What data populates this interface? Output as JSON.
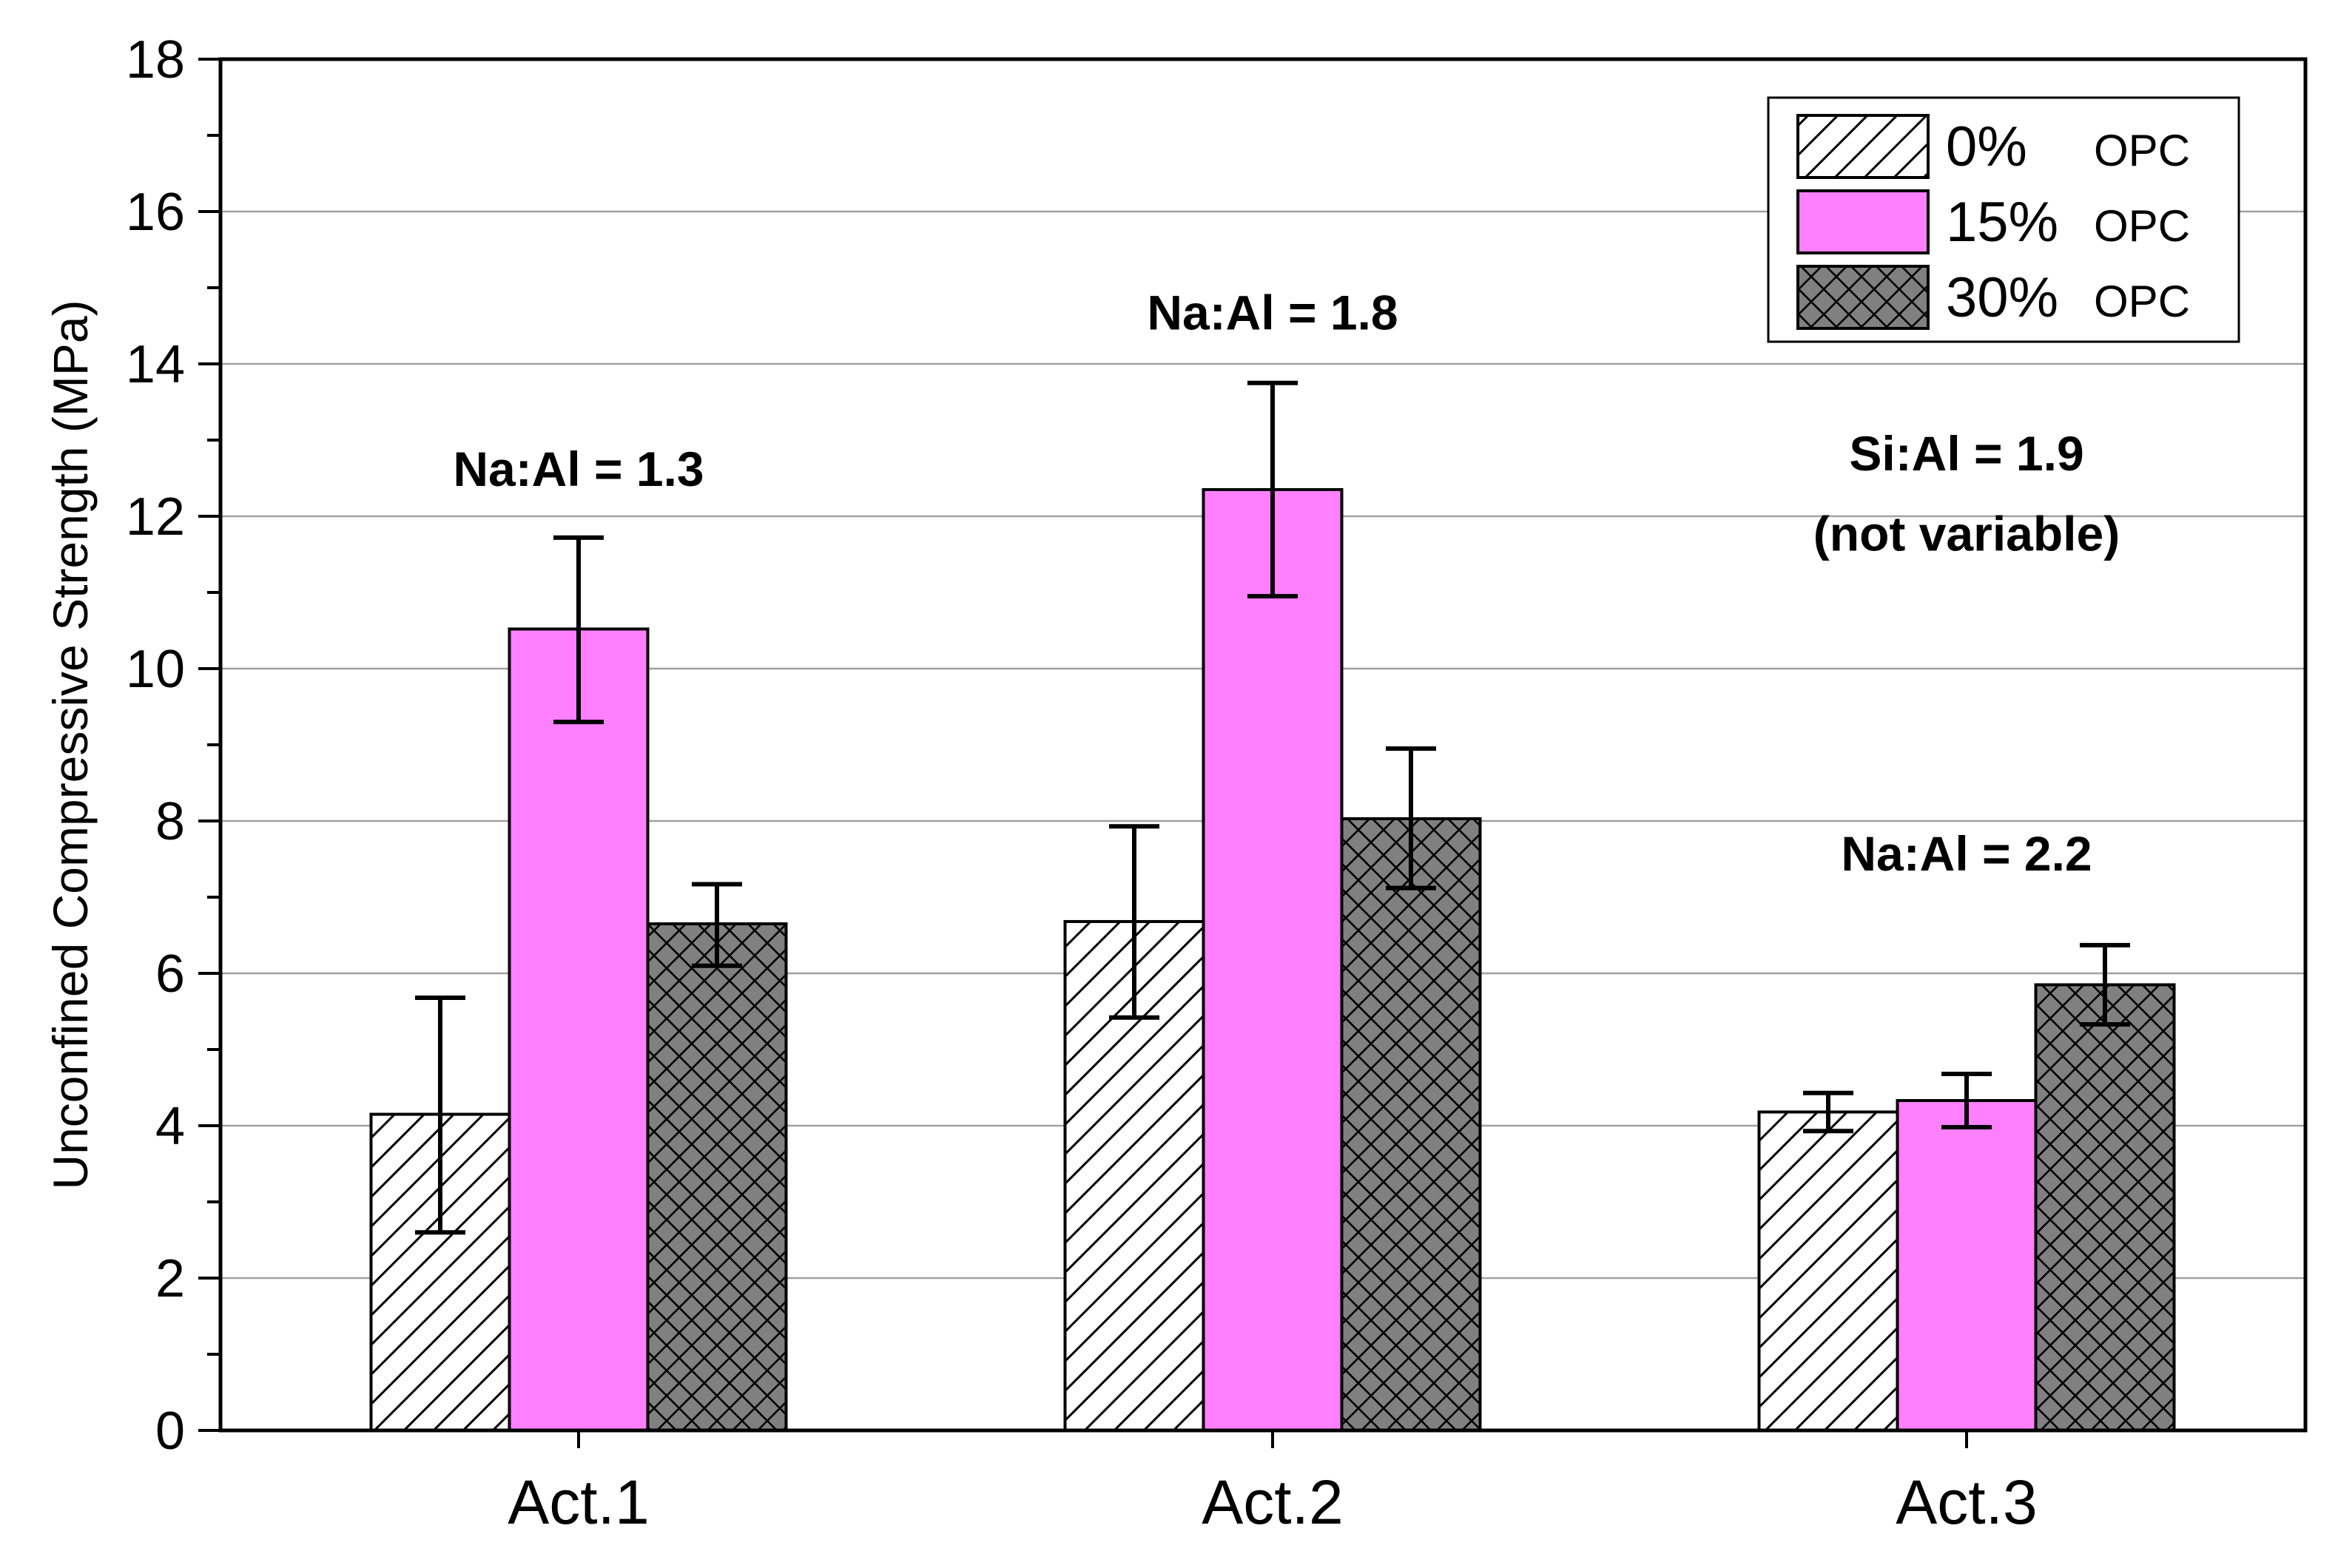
{
  "chart_data": {
    "type": "bar",
    "title": "",
    "xlabel": "",
    "ylabel": "Unconfined Compressive Strength (MPa)",
    "ylim": [
      0,
      18
    ],
    "yticks": [
      0,
      2,
      4,
      6,
      8,
      10,
      12,
      14,
      16,
      18
    ],
    "grid": true,
    "categories": [
      "Act.1",
      "Act.2",
      "Act.3"
    ],
    "series": [
      {
        "name": "0%",
        "name_suffix": "OPC",
        "fill": "#ffffff",
        "pattern": "diagonal-hatch",
        "values": [
          4.15,
          6.68,
          4.18
        ],
        "err_low": [
          2.6,
          5.42,
          3.93
        ],
        "err_high": [
          5.68,
          7.93,
          4.43
        ]
      },
      {
        "name": "15%",
        "name_suffix": "OPC",
        "fill": "#ff80ff",
        "pattern": "solid",
        "values": [
          10.52,
          12.35,
          4.33
        ],
        "err_low": [
          9.3,
          10.95,
          3.98
        ],
        "err_high": [
          11.72,
          13.75,
          4.68
        ]
      },
      {
        "name": "30%",
        "name_suffix": "OPC",
        "fill": "#808080",
        "pattern": "cross-hatch",
        "values": [
          6.65,
          8.03,
          5.85
        ],
        "err_low": [
          6.1,
          7.12,
          5.33
        ],
        "err_high": [
          7.17,
          8.95,
          6.37
        ]
      }
    ],
    "annotations": [
      {
        "text": "Na:Al = 1.3",
        "category": "Act.1",
        "y": 12.4
      },
      {
        "text": "Na:Al = 1.8",
        "category": "Act.2",
        "y": 14.45
      },
      {
        "text": "Na:Al = 2.2",
        "category": "Act.3",
        "y": 7.35
      },
      {
        "text": "Si:Al = 1.9",
        "category": "Act.3",
        "y": 12.6
      },
      {
        "text": "(not variable)",
        "category": "Act.3",
        "y": 11.55
      }
    ],
    "legend_position": "top-right"
  }
}
